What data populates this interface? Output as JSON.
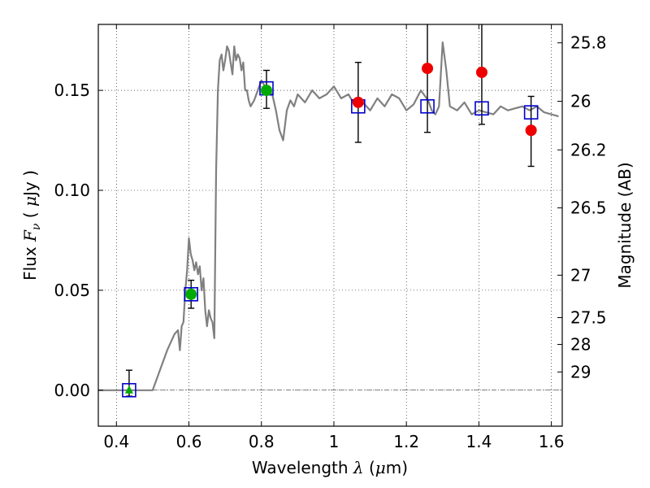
{
  "chart_data": {
    "type": "scatter",
    "title": "",
    "xlabel": "Wavelength  λ (μm)",
    "ylabel": "Flux  F_ν  ( μJy )",
    "ylabel_parts": {
      "a": "Flux  ",
      "b": "F",
      "c": "ν",
      "d": "  ( ",
      "e": "μ",
      "f": "Jy )"
    },
    "xlabel_parts": {
      "a": "Wavelength  ",
      "b": "λ",
      "c": " (",
      "d": "μ",
      "e": "m)"
    },
    "y2label": "Magnitude (AB)",
    "xlim": [
      0.35,
      1.63
    ],
    "ylim": [
      -0.018,
      0.183
    ],
    "grid": true,
    "x_ticks": [
      0.4,
      0.6,
      0.8,
      1.0,
      1.2,
      1.4,
      1.6
    ],
    "x_tick_labels": [
      "0.4",
      "0.6",
      "0.8",
      "1",
      "1.2",
      "1.4",
      "1.6"
    ],
    "y_ticks": [
      0.0,
      0.05,
      0.1,
      0.15
    ],
    "y_tick_labels": [
      "0.00",
      "0.05",
      "0.10",
      "0.15"
    ],
    "y2_ticks": [
      {
        "label": "25.8",
        "mag": 25.8
      },
      {
        "label": "26",
        "mag": 26.0
      },
      {
        "label": "26.2",
        "mag": 26.2
      },
      {
        "label": "26.5",
        "mag": 26.5
      },
      {
        "label": "27",
        "mag": 27.0
      },
      {
        "label": "27.5",
        "mag": 27.5
      },
      {
        "label": "28",
        "mag": 28.0
      },
      {
        "label": "29",
        "mag": 29.0
      }
    ],
    "model_spectrum": {
      "color": "#808080",
      "x": [
        0.35,
        0.5,
        0.52,
        0.54,
        0.56,
        0.57,
        0.575,
        0.58,
        0.585,
        0.59,
        0.595,
        0.6,
        0.605,
        0.61,
        0.615,
        0.62,
        0.625,
        0.63,
        0.635,
        0.64,
        0.645,
        0.65,
        0.655,
        0.66,
        0.665,
        0.67,
        0.675,
        0.68,
        0.685,
        0.69,
        0.695,
        0.7,
        0.705,
        0.71,
        0.715,
        0.72,
        0.725,
        0.73,
        0.735,
        0.74,
        0.745,
        0.75,
        0.755,
        0.76,
        0.765,
        0.77,
        0.78,
        0.79,
        0.8,
        0.81,
        0.82,
        0.83,
        0.84,
        0.85,
        0.86,
        0.87,
        0.88,
        0.89,
        0.9,
        0.92,
        0.94,
        0.96,
        0.98,
        1.0,
        1.02,
        1.04,
        1.06,
        1.08,
        1.1,
        1.12,
        1.14,
        1.16,
        1.18,
        1.2,
        1.22,
        1.24,
        1.26,
        1.27,
        1.28,
        1.29,
        1.3,
        1.31,
        1.32,
        1.34,
        1.36,
        1.38,
        1.4,
        1.42,
        1.44,
        1.46,
        1.48,
        1.5,
        1.52,
        1.54,
        1.56,
        1.58,
        1.6,
        1.62
      ],
      "y": [
        0.0,
        0.0,
        0.01,
        0.02,
        0.028,
        0.03,
        0.02,
        0.032,
        0.034,
        0.05,
        0.06,
        0.076,
        0.068,
        0.065,
        0.06,
        0.064,
        0.058,
        0.062,
        0.05,
        0.056,
        0.04,
        0.032,
        0.04,
        0.036,
        0.034,
        0.026,
        0.11,
        0.15,
        0.165,
        0.168,
        0.16,
        0.165,
        0.172,
        0.17,
        0.164,
        0.158,
        0.172,
        0.165,
        0.168,
        0.166,
        0.16,
        0.164,
        0.15,
        0.15,
        0.145,
        0.142,
        0.145,
        0.15,
        0.155,
        0.152,
        0.15,
        0.148,
        0.14,
        0.13,
        0.125,
        0.14,
        0.145,
        0.142,
        0.148,
        0.144,
        0.15,
        0.146,
        0.148,
        0.152,
        0.146,
        0.148,
        0.142,
        0.144,
        0.14,
        0.146,
        0.142,
        0.148,
        0.146,
        0.14,
        0.143,
        0.15,
        0.145,
        0.14,
        0.138,
        0.142,
        0.174,
        0.16,
        0.142,
        0.14,
        0.144,
        0.138,
        0.14,
        0.139,
        0.138,
        0.142,
        0.14,
        0.141,
        0.142,
        0.14,
        0.142,
        0.139,
        0.138,
        0.137
      ]
    },
    "model_photometry": {
      "name": "model",
      "color": "#0000cc",
      "points": [
        [
          0.435,
          0.0
        ],
        [
          0.606,
          0.048
        ],
        [
          0.814,
          0.151
        ],
        [
          1.067,
          0.142
        ],
        [
          1.258,
          0.142
        ],
        [
          1.408,
          0.141
        ],
        [
          1.544,
          0.139
        ]
      ]
    },
    "observed_detections": {
      "color": "#00aa00",
      "points": [
        [
          0.606,
          0.048
        ],
        [
          0.814,
          0.15
        ]
      ]
    },
    "observed_lowsn": {
      "color": "#ee0000",
      "points": [
        [
          1.067,
          0.144
        ],
        [
          1.258,
          0.161
        ],
        [
          1.408,
          0.159
        ],
        [
          1.544,
          0.13
        ]
      ]
    },
    "upper_limit": {
      "color": "#00aa00",
      "points": [
        [
          0.435,
          0.0
        ]
      ]
    },
    "error_bars": [
      {
        "x": 0.435,
        "y": 0.0,
        "lo": -0.003,
        "hi": 0.01
      },
      {
        "x": 0.606,
        "y": 0.048,
        "lo": 0.041,
        "hi": 0.055
      },
      {
        "x": 0.814,
        "y": 0.15,
        "lo": 0.141,
        "hi": 0.16
      },
      {
        "x": 1.067,
        "y": 0.144,
        "lo": 0.124,
        "hi": 0.164
      },
      {
        "x": 1.258,
        "y": 0.161,
        "lo": 0.129,
        "hi": 0.185
      },
      {
        "x": 1.408,
        "y": 0.159,
        "lo": 0.133,
        "hi": 0.185
      },
      {
        "x": 1.544,
        "y": 0.13,
        "lo": 0.112,
        "hi": 0.147
      }
    ],
    "zero_line": 0.0
  }
}
